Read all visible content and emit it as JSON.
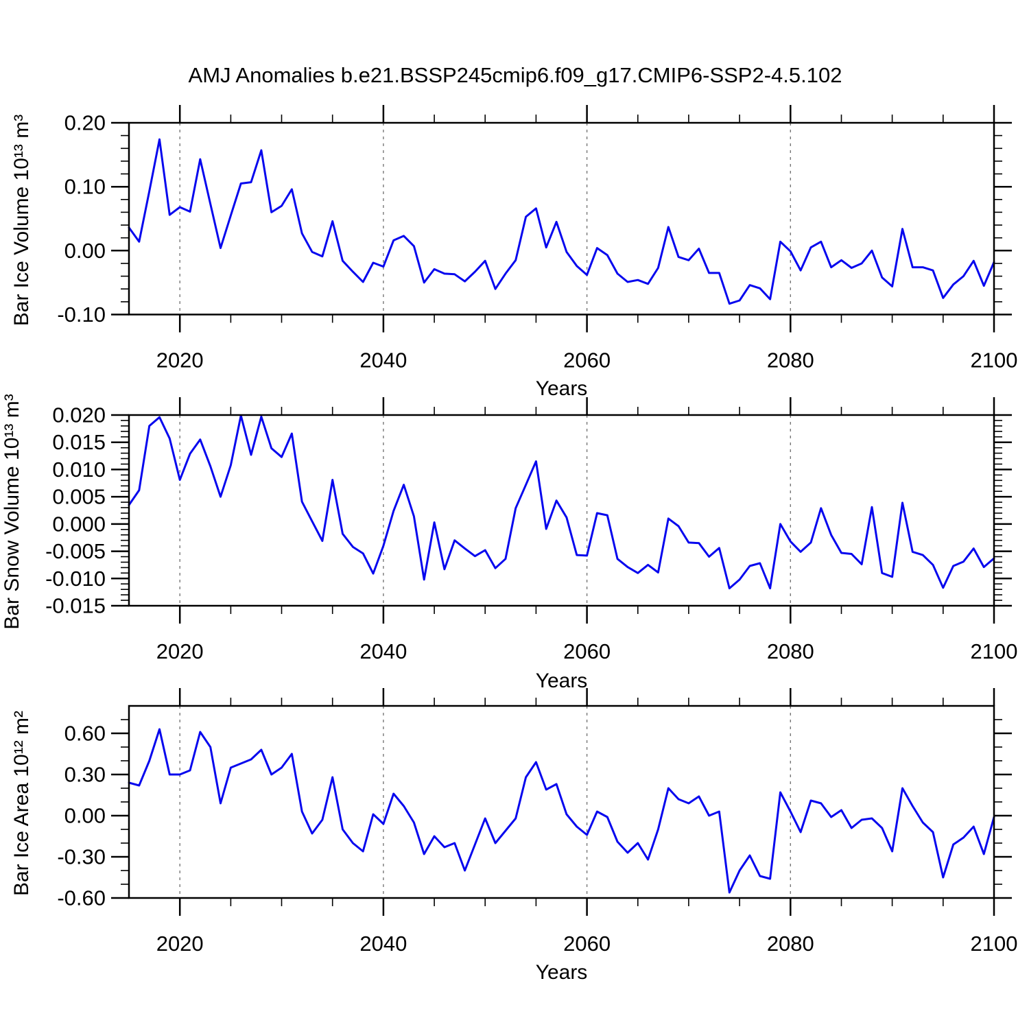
{
  "title": "AMJ Anomalies b.e21.BSSP245cmip6.f09_g17.CMIP6-SSP2-4.5.102",
  "colors": {
    "line": "#0707ee",
    "axis": "#000000",
    "grid": "#777777",
    "background": "#ffffff",
    "text": "#000000"
  },
  "x_axis": {
    "label": "Years",
    "range": [
      2015,
      2100
    ],
    "major_ticks": [
      2020,
      2040,
      2060,
      2080,
      2100
    ],
    "major_tick_labels": [
      "2020",
      "2040",
      "2060",
      "2080",
      "2100"
    ],
    "minor_tick_step": 5,
    "dashed_gridline_years": [
      2020,
      2040,
      2060,
      2080
    ]
  },
  "chart_data": [
    {
      "type": "line",
      "panel": "top",
      "ylabel": "Bar Ice Volume 10¹³ m³",
      "xlabel": "Years",
      "ylim": [
        -0.1,
        0.2
      ],
      "yticks": [
        0.2,
        0.1,
        0.0,
        -0.1
      ],
      "ytick_labels": [
        "0.20",
        "0.10",
        "0.00",
        "-0.10"
      ],
      "yminor_step": 0.02,
      "x_start": 2015,
      "x_step": 1,
      "values": [
        0.036,
        0.014,
        0.093,
        0.174,
        0.056,
        0.068,
        0.061,
        0.143,
        0.073,
        0.004,
        0.055,
        0.105,
        0.107,
        0.157,
        0.06,
        0.07,
        0.096,
        0.027,
        -0.002,
        -0.009,
        0.046,
        -0.016,
        -0.033,
        -0.049,
        -0.019,
        -0.025,
        0.016,
        0.023,
        0.007,
        -0.05,
        -0.029,
        -0.036,
        -0.037,
        -0.048,
        -0.033,
        -0.016,
        -0.06,
        -0.036,
        -0.015,
        0.053,
        0.066,
        0.005,
        0.045,
        -0.002,
        -0.024,
        -0.038,
        0.004,
        -0.007,
        -0.036,
        -0.049,
        -0.046,
        -0.052,
        -0.027,
        0.037,
        -0.01,
        -0.015,
        0.003,
        -0.035,
        -0.035,
        -0.083,
        -0.078,
        -0.054,
        -0.059,
        -0.076,
        0.014,
        -0.001,
        -0.031,
        0.005,
        0.014,
        -0.026,
        -0.015,
        -0.027,
        -0.02,
        0.0,
        -0.042,
        -0.056,
        0.034,
        -0.026,
        -0.026,
        -0.031,
        -0.074,
        -0.053,
        -0.04,
        -0.016,
        -0.055,
        -0.018
      ]
    },
    {
      "type": "line",
      "panel": "middle",
      "ylabel": "Bar Snow Volume 10¹³ m³",
      "xlabel": "Years",
      "ylim": [
        -0.015,
        0.02
      ],
      "yticks": [
        0.02,
        0.015,
        0.01,
        0.005,
        0.0,
        -0.005,
        -0.01,
        -0.015
      ],
      "ytick_labels": [
        "0.020",
        "0.015",
        "0.010",
        "0.005",
        "0.000",
        "-0.005",
        "-0.010",
        "-0.015"
      ],
      "yminor_step": 0.001,
      "x_start": 2015,
      "x_step": 1,
      "values": [
        0.0035,
        0.0062,
        0.018,
        0.0196,
        0.0157,
        0.0081,
        0.0129,
        0.0155,
        0.0106,
        0.005,
        0.0108,
        0.0199,
        0.0127,
        0.0197,
        0.0139,
        0.0123,
        0.0166,
        0.0041,
        0.0005,
        -0.0031,
        0.0081,
        -0.0018,
        -0.0042,
        -0.0054,
        -0.0091,
        -0.004,
        0.0024,
        0.0072,
        0.0014,
        -0.0102,
        0.0003,
        -0.0083,
        -0.003,
        -0.0045,
        -0.0059,
        -0.0048,
        -0.0081,
        -0.0064,
        0.0029,
        0.0072,
        0.0115,
        -0.0009,
        0.0043,
        0.0012,
        -0.0057,
        -0.0058,
        0.002,
        0.0016,
        -0.0064,
        -0.0079,
        -0.009,
        -0.0075,
        -0.0089,
        0.001,
        -0.0004,
        -0.0034,
        -0.0035,
        -0.006,
        -0.0044,
        -0.0118,
        -0.0102,
        -0.0077,
        -0.0072,
        -0.0118,
        0.0,
        -0.0032,
        -0.0051,
        -0.0034,
        0.0029,
        -0.002,
        -0.0053,
        -0.0055,
        -0.0074,
        0.0031,
        -0.009,
        -0.0097,
        0.0039,
        -0.0051,
        -0.0057,
        -0.0075,
        -0.0117,
        -0.0077,
        -0.0069,
        -0.0045,
        -0.0079,
        -0.0063
      ]
    },
    {
      "type": "line",
      "panel": "bottom",
      "ylabel": "Bar Ice Area 10¹² m²",
      "xlabel": "Years",
      "ylim": [
        -0.6,
        0.8
      ],
      "yticks": [
        0.6,
        0.3,
        0.0,
        -0.3,
        -0.6
      ],
      "ytick_labels": [
        "0.60",
        "0.30",
        "0.00",
        "-0.30",
        "-0.60"
      ],
      "yminor_step": 0.1,
      "x_start": 2015,
      "x_step": 1,
      "values": [
        0.24,
        0.22,
        0.4,
        0.63,
        0.3,
        0.3,
        0.33,
        0.61,
        0.5,
        0.09,
        0.35,
        0.38,
        0.41,
        0.48,
        0.3,
        0.35,
        0.45,
        0.03,
        -0.13,
        -0.03,
        0.28,
        -0.1,
        -0.2,
        -0.26,
        0.01,
        -0.06,
        0.16,
        0.07,
        -0.05,
        -0.28,
        -0.15,
        -0.23,
        -0.2,
        -0.4,
        -0.21,
        -0.02,
        -0.2,
        -0.11,
        -0.02,
        0.28,
        0.39,
        0.19,
        0.23,
        0.01,
        -0.08,
        -0.14,
        0.03,
        -0.01,
        -0.19,
        -0.27,
        -0.2,
        -0.32,
        -0.1,
        0.2,
        0.12,
        0.09,
        0.14,
        0.0,
        0.03,
        -0.56,
        -0.4,
        -0.29,
        -0.44,
        -0.46,
        0.17,
        0.03,
        -0.12,
        0.11,
        0.09,
        -0.01,
        0.04,
        -0.09,
        -0.03,
        -0.02,
        -0.09,
        -0.26,
        0.2,
        0.07,
        -0.05,
        -0.12,
        -0.45,
        -0.21,
        -0.16,
        -0.08,
        -0.28,
        -0.01
      ]
    }
  ]
}
